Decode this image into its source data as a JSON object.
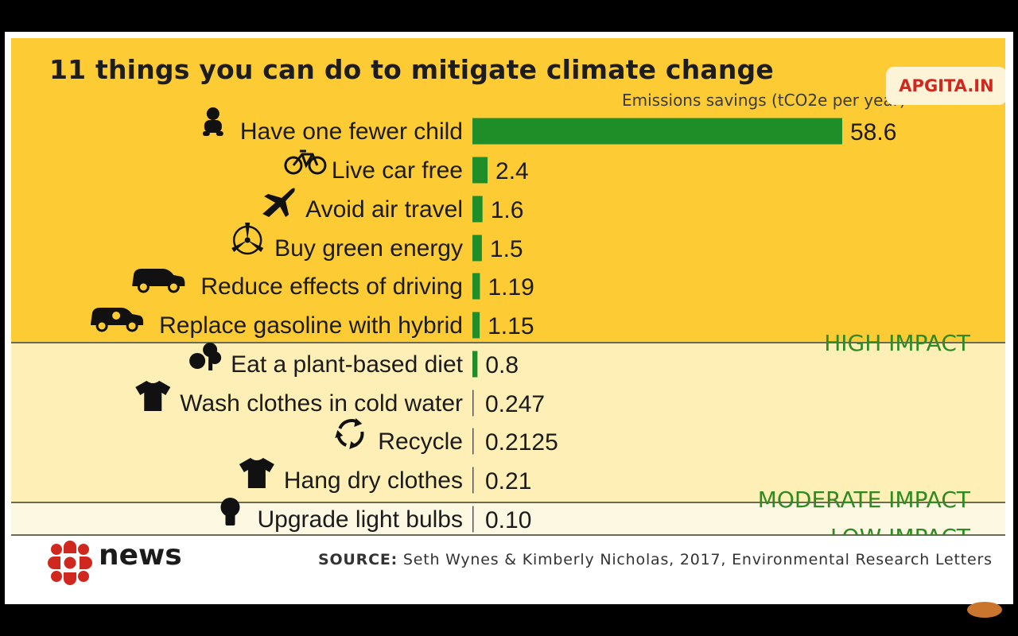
{
  "title": "11 things you can do to mitigate climate change",
  "watermark": "APGITA.IN",
  "units_label": "Emissions savings (tCO2e per year)",
  "chart_data": {
    "type": "bar",
    "orientation": "horizontal",
    "title": "11 things you can do to mitigate climate change",
    "xlabel": "Emissions savings (tCO2e per year)",
    "categories": [
      "Have one fewer child",
      "Live car free",
      "Avoid air travel",
      "Buy green energy",
      "Reduce effects of driving",
      "Replace gasoline with hybrid",
      "Eat a plant-based diet",
      "Wash clothes in cold water",
      "Recycle",
      "Hang dry clothes",
      "Upgrade light bulbs"
    ],
    "values": [
      58.6,
      2.4,
      1.6,
      1.5,
      1.19,
      1.15,
      0.8,
      0.247,
      0.2125,
      0.21,
      0.1
    ],
    "value_labels": [
      "58.6",
      "2.4",
      "1.6",
      "1.5",
      "1.19",
      "1.15",
      "0.8",
      "0.247",
      "0.2125",
      "0.21",
      "0.10"
    ],
    "icons": [
      "baby-icon",
      "bicycle-icon",
      "airplane-icon",
      "wind-turbine-icon",
      "car-icon",
      "hybrid-car-icon",
      "vegetables-icon",
      "tshirt-icon",
      "recycle-icon",
      "tshirt-icon",
      "light-bulb-icon"
    ],
    "impact_groups": [
      {
        "label": "HIGH IMPACT",
        "count": 6
      },
      {
        "label": "MODERATE IMPACT",
        "count": 4
      },
      {
        "label": "LOW IMPACT",
        "count": 1
      }
    ],
    "bar_color": "#1f8e29",
    "grid": false,
    "legend": "none"
  },
  "footer": {
    "logo_word": "news",
    "source_prefix": "SOURCE:",
    "source_text": "Seth Wynes & Kimberly Nicholas, 2017, Environmental Research Letters"
  }
}
